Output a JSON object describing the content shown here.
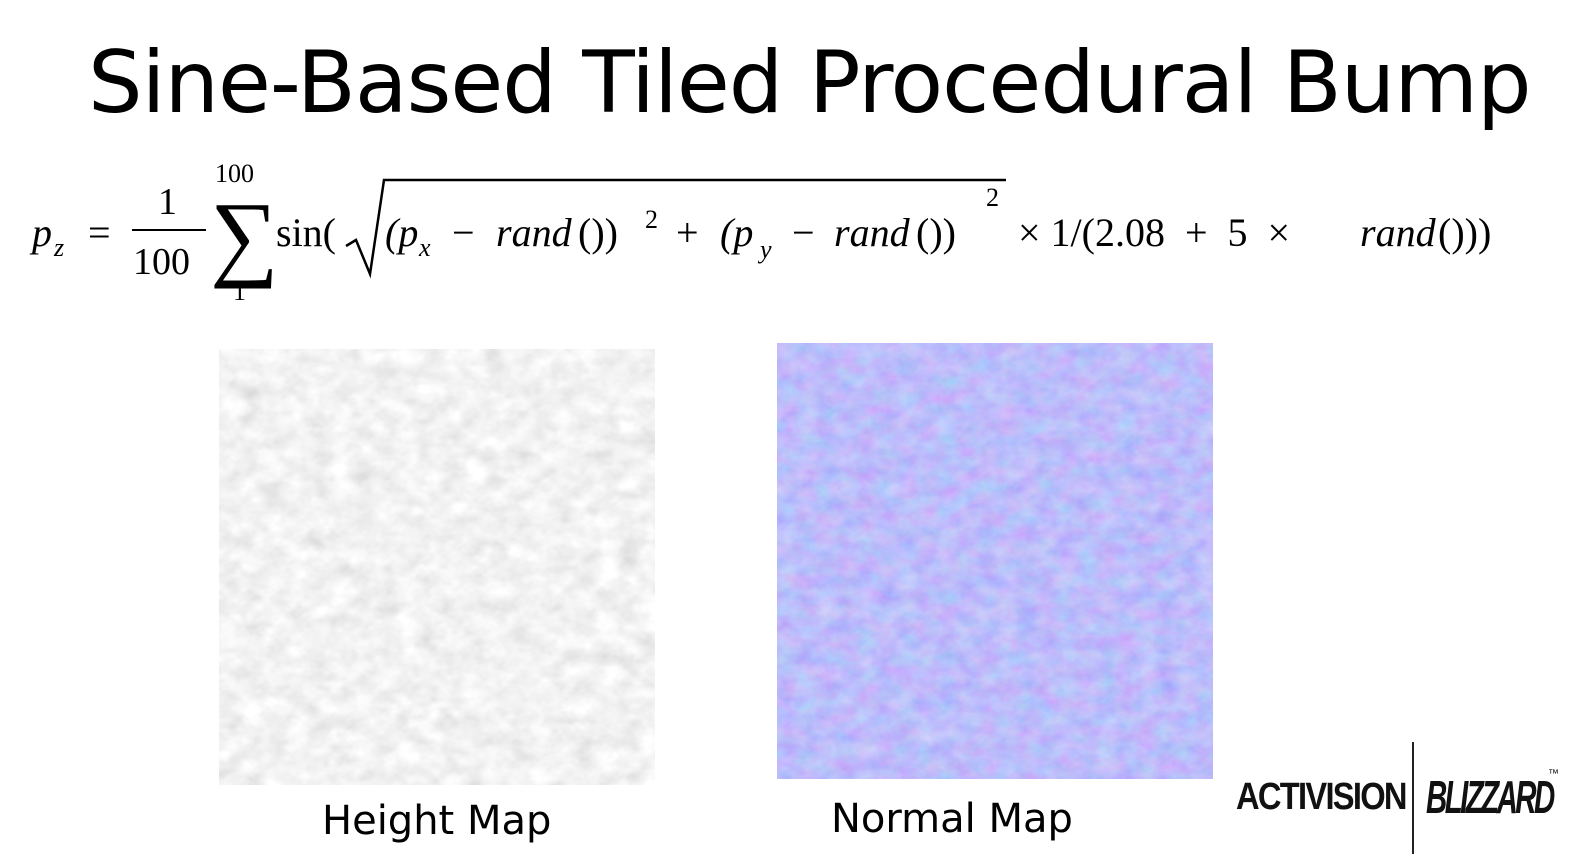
{
  "slide": {
    "title": "Sine-Based Tiled Procedural Bump"
  },
  "formula": {
    "lhs": "p",
    "lhs_sub": "z",
    "equals": "=",
    "frac_num": "1",
    "frac_den": "100",
    "sum_upper": "100",
    "sum_lower": "1",
    "sum_symbol": "∑",
    "sin_open": "sin(",
    "paren1_open": "(p",
    "px_sub": "x",
    "minus1": "−",
    "rand1": "rand",
    "rand1_parens": "())",
    "sq1": "2",
    "plus1": "+",
    "paren2_open": "(p",
    "py_sub": "y",
    "minus2": "−",
    "rand2": "rand",
    "rand2_parens": "())",
    "sq2": "2",
    "tail_part1": "× 1/(2.08  +  5  ×",
    "rand3": "rand",
    "tail_part2": "()))"
  },
  "panels": {
    "height_map": {
      "caption": "Height Map",
      "color": "#c8c8c8"
    },
    "normal_map": {
      "caption": "Normal Map",
      "color": "#7f7ff2"
    }
  },
  "logos": {
    "activision": "ACTIVISION",
    "blizzard": "BLIZZARD",
    "trademark": "™"
  }
}
